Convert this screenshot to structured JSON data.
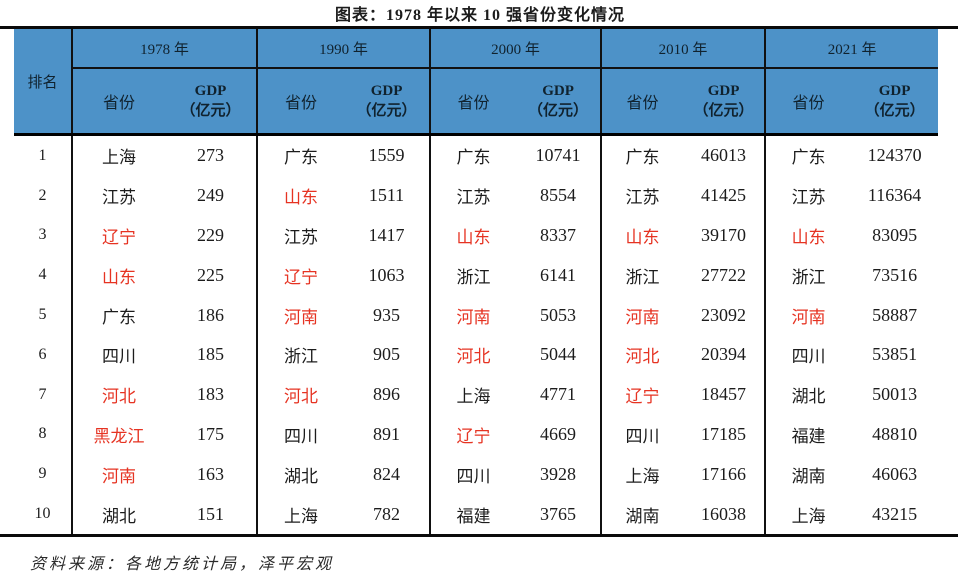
{
  "title": "图表：1978 年以来 10 强省份变化情况",
  "source_note": "资料来源：各地方统计局，泽平宏观",
  "colors": {
    "header_bg": "#4d92c8",
    "highlight_red": "#e63322",
    "text": "#1c1c1c",
    "rule": "#0a0a0a"
  },
  "chart_data": {
    "type": "table",
    "title": "图表：1978 年以来 10 强省份变化情况",
    "source_note": "资料来源：各地方统计局，泽平宏观",
    "unit": "亿元",
    "rank_label": "排名",
    "province_label": "省份",
    "gdp_label_line1": "GDP",
    "gdp_label_line2": "（亿元）",
    "years": [
      "1978 年",
      "1990 年",
      "2000 年",
      "2010 年",
      "2021 年"
    ],
    "ranks": [
      1,
      2,
      3,
      4,
      5,
      6,
      7,
      8,
      9,
      10
    ],
    "groups": [
      {
        "year": "1978 年",
        "rows": [
          {
            "province": "上海",
            "gdp": 273,
            "red": false
          },
          {
            "province": "江苏",
            "gdp": 249,
            "red": false
          },
          {
            "province": "辽宁",
            "gdp": 229,
            "red": true
          },
          {
            "province": "山东",
            "gdp": 225,
            "red": true
          },
          {
            "province": "广东",
            "gdp": 186,
            "red": false
          },
          {
            "province": "四川",
            "gdp": 185,
            "red": false
          },
          {
            "province": "河北",
            "gdp": 183,
            "red": true
          },
          {
            "province": "黑龙江",
            "gdp": 175,
            "red": true
          },
          {
            "province": "河南",
            "gdp": 163,
            "red": true
          },
          {
            "province": "湖北",
            "gdp": 151,
            "red": false
          }
        ]
      },
      {
        "year": "1990 年",
        "rows": [
          {
            "province": "广东",
            "gdp": 1559,
            "red": false
          },
          {
            "province": "山东",
            "gdp": 1511,
            "red": true
          },
          {
            "province": "江苏",
            "gdp": 1417,
            "red": false
          },
          {
            "province": "辽宁",
            "gdp": 1063,
            "red": true
          },
          {
            "province": "河南",
            "gdp": 935,
            "red": true
          },
          {
            "province": "浙江",
            "gdp": 905,
            "red": false
          },
          {
            "province": "河北",
            "gdp": 896,
            "red": true
          },
          {
            "province": "四川",
            "gdp": 891,
            "red": false
          },
          {
            "province": "湖北",
            "gdp": 824,
            "red": false
          },
          {
            "province": "上海",
            "gdp": 782,
            "red": false
          }
        ]
      },
      {
        "year": "2000 年",
        "rows": [
          {
            "province": "广东",
            "gdp": 10741,
            "red": false
          },
          {
            "province": "江苏",
            "gdp": 8554,
            "red": false
          },
          {
            "province": "山东",
            "gdp": 8337,
            "red": true
          },
          {
            "province": "浙江",
            "gdp": 6141,
            "red": false
          },
          {
            "province": "河南",
            "gdp": 5053,
            "red": true
          },
          {
            "province": "河北",
            "gdp": 5044,
            "red": true
          },
          {
            "province": "上海",
            "gdp": 4771,
            "red": false
          },
          {
            "province": "辽宁",
            "gdp": 4669,
            "red": true
          },
          {
            "province": "四川",
            "gdp": 3928,
            "red": false
          },
          {
            "province": "福建",
            "gdp": 3765,
            "red": false
          }
        ]
      },
      {
        "year": "2010 年",
        "rows": [
          {
            "province": "广东",
            "gdp": 46013,
            "red": false
          },
          {
            "province": "江苏",
            "gdp": 41425,
            "red": false
          },
          {
            "province": "山东",
            "gdp": 39170,
            "red": true
          },
          {
            "province": "浙江",
            "gdp": 27722,
            "red": false
          },
          {
            "province": "河南",
            "gdp": 23092,
            "red": true
          },
          {
            "province": "河北",
            "gdp": 20394,
            "red": true
          },
          {
            "province": "辽宁",
            "gdp": 18457,
            "red": true
          },
          {
            "province": "四川",
            "gdp": 17185,
            "red": false
          },
          {
            "province": "上海",
            "gdp": 17166,
            "red": false
          },
          {
            "province": "湖南",
            "gdp": 16038,
            "red": false
          }
        ]
      },
      {
        "year": "2021 年",
        "rows": [
          {
            "province": "广东",
            "gdp": 124370,
            "red": false
          },
          {
            "province": "江苏",
            "gdp": 116364,
            "red": false
          },
          {
            "province": "山东",
            "gdp": 83095,
            "red": true
          },
          {
            "province": "浙江",
            "gdp": 73516,
            "red": false
          },
          {
            "province": "河南",
            "gdp": 58887,
            "red": true
          },
          {
            "province": "四川",
            "gdp": 53851,
            "red": false
          },
          {
            "province": "湖北",
            "gdp": 50013,
            "red": false
          },
          {
            "province": "福建",
            "gdp": 48810,
            "red": false
          },
          {
            "province": "湖南",
            "gdp": 46063,
            "red": false
          },
          {
            "province": "上海",
            "gdp": 43215,
            "red": false
          }
        ]
      }
    ]
  }
}
